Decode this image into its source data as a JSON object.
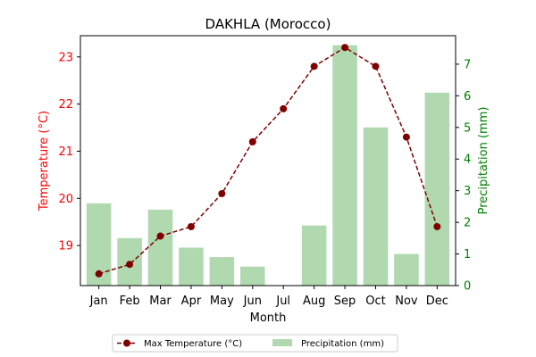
{
  "chart_data": {
    "type": "bar",
    "title": "DAKHLA (Morocco)",
    "xlabel": "Month",
    "categories": [
      "Jan",
      "Feb",
      "Mar",
      "Apr",
      "May",
      "Jun",
      "Jul",
      "Aug",
      "Sep",
      "Oct",
      "Nov",
      "Dec"
    ],
    "left_axis": {
      "label": "Temperature (°C)",
      "ylim": [
        18.15,
        23.45
      ],
      "ticks": [
        19,
        20,
        21,
        22,
        23
      ],
      "color": "#ff0000"
    },
    "right_axis": {
      "label": "Precipitation (mm)",
      "ylim": [
        0,
        7.9
      ],
      "ticks": [
        0,
        1,
        2,
        3,
        4,
        5,
        6,
        7
      ],
      "color": "#008000"
    },
    "series": [
      {
        "name": "Max Temperature (°C)",
        "type": "line",
        "axis": "left",
        "color": "#800000",
        "line_style": "dashed",
        "marker": "circle",
        "values": [
          18.4,
          18.6,
          19.2,
          19.4,
          20.1,
          21.2,
          21.9,
          22.8,
          23.2,
          22.8,
          21.3,
          19.4
        ]
      },
      {
        "name": "Precipitation (mm)",
        "type": "bar",
        "axis": "right",
        "color": "#b0d9b0",
        "values": [
          2.6,
          1.5,
          2.4,
          1.2,
          0.9,
          0.6,
          0,
          1.9,
          7.6,
          5.0,
          1.0,
          6.1
        ]
      }
    ],
    "legend": {
      "placement": "bottom-center",
      "columns": 2
    },
    "grid": false
  }
}
